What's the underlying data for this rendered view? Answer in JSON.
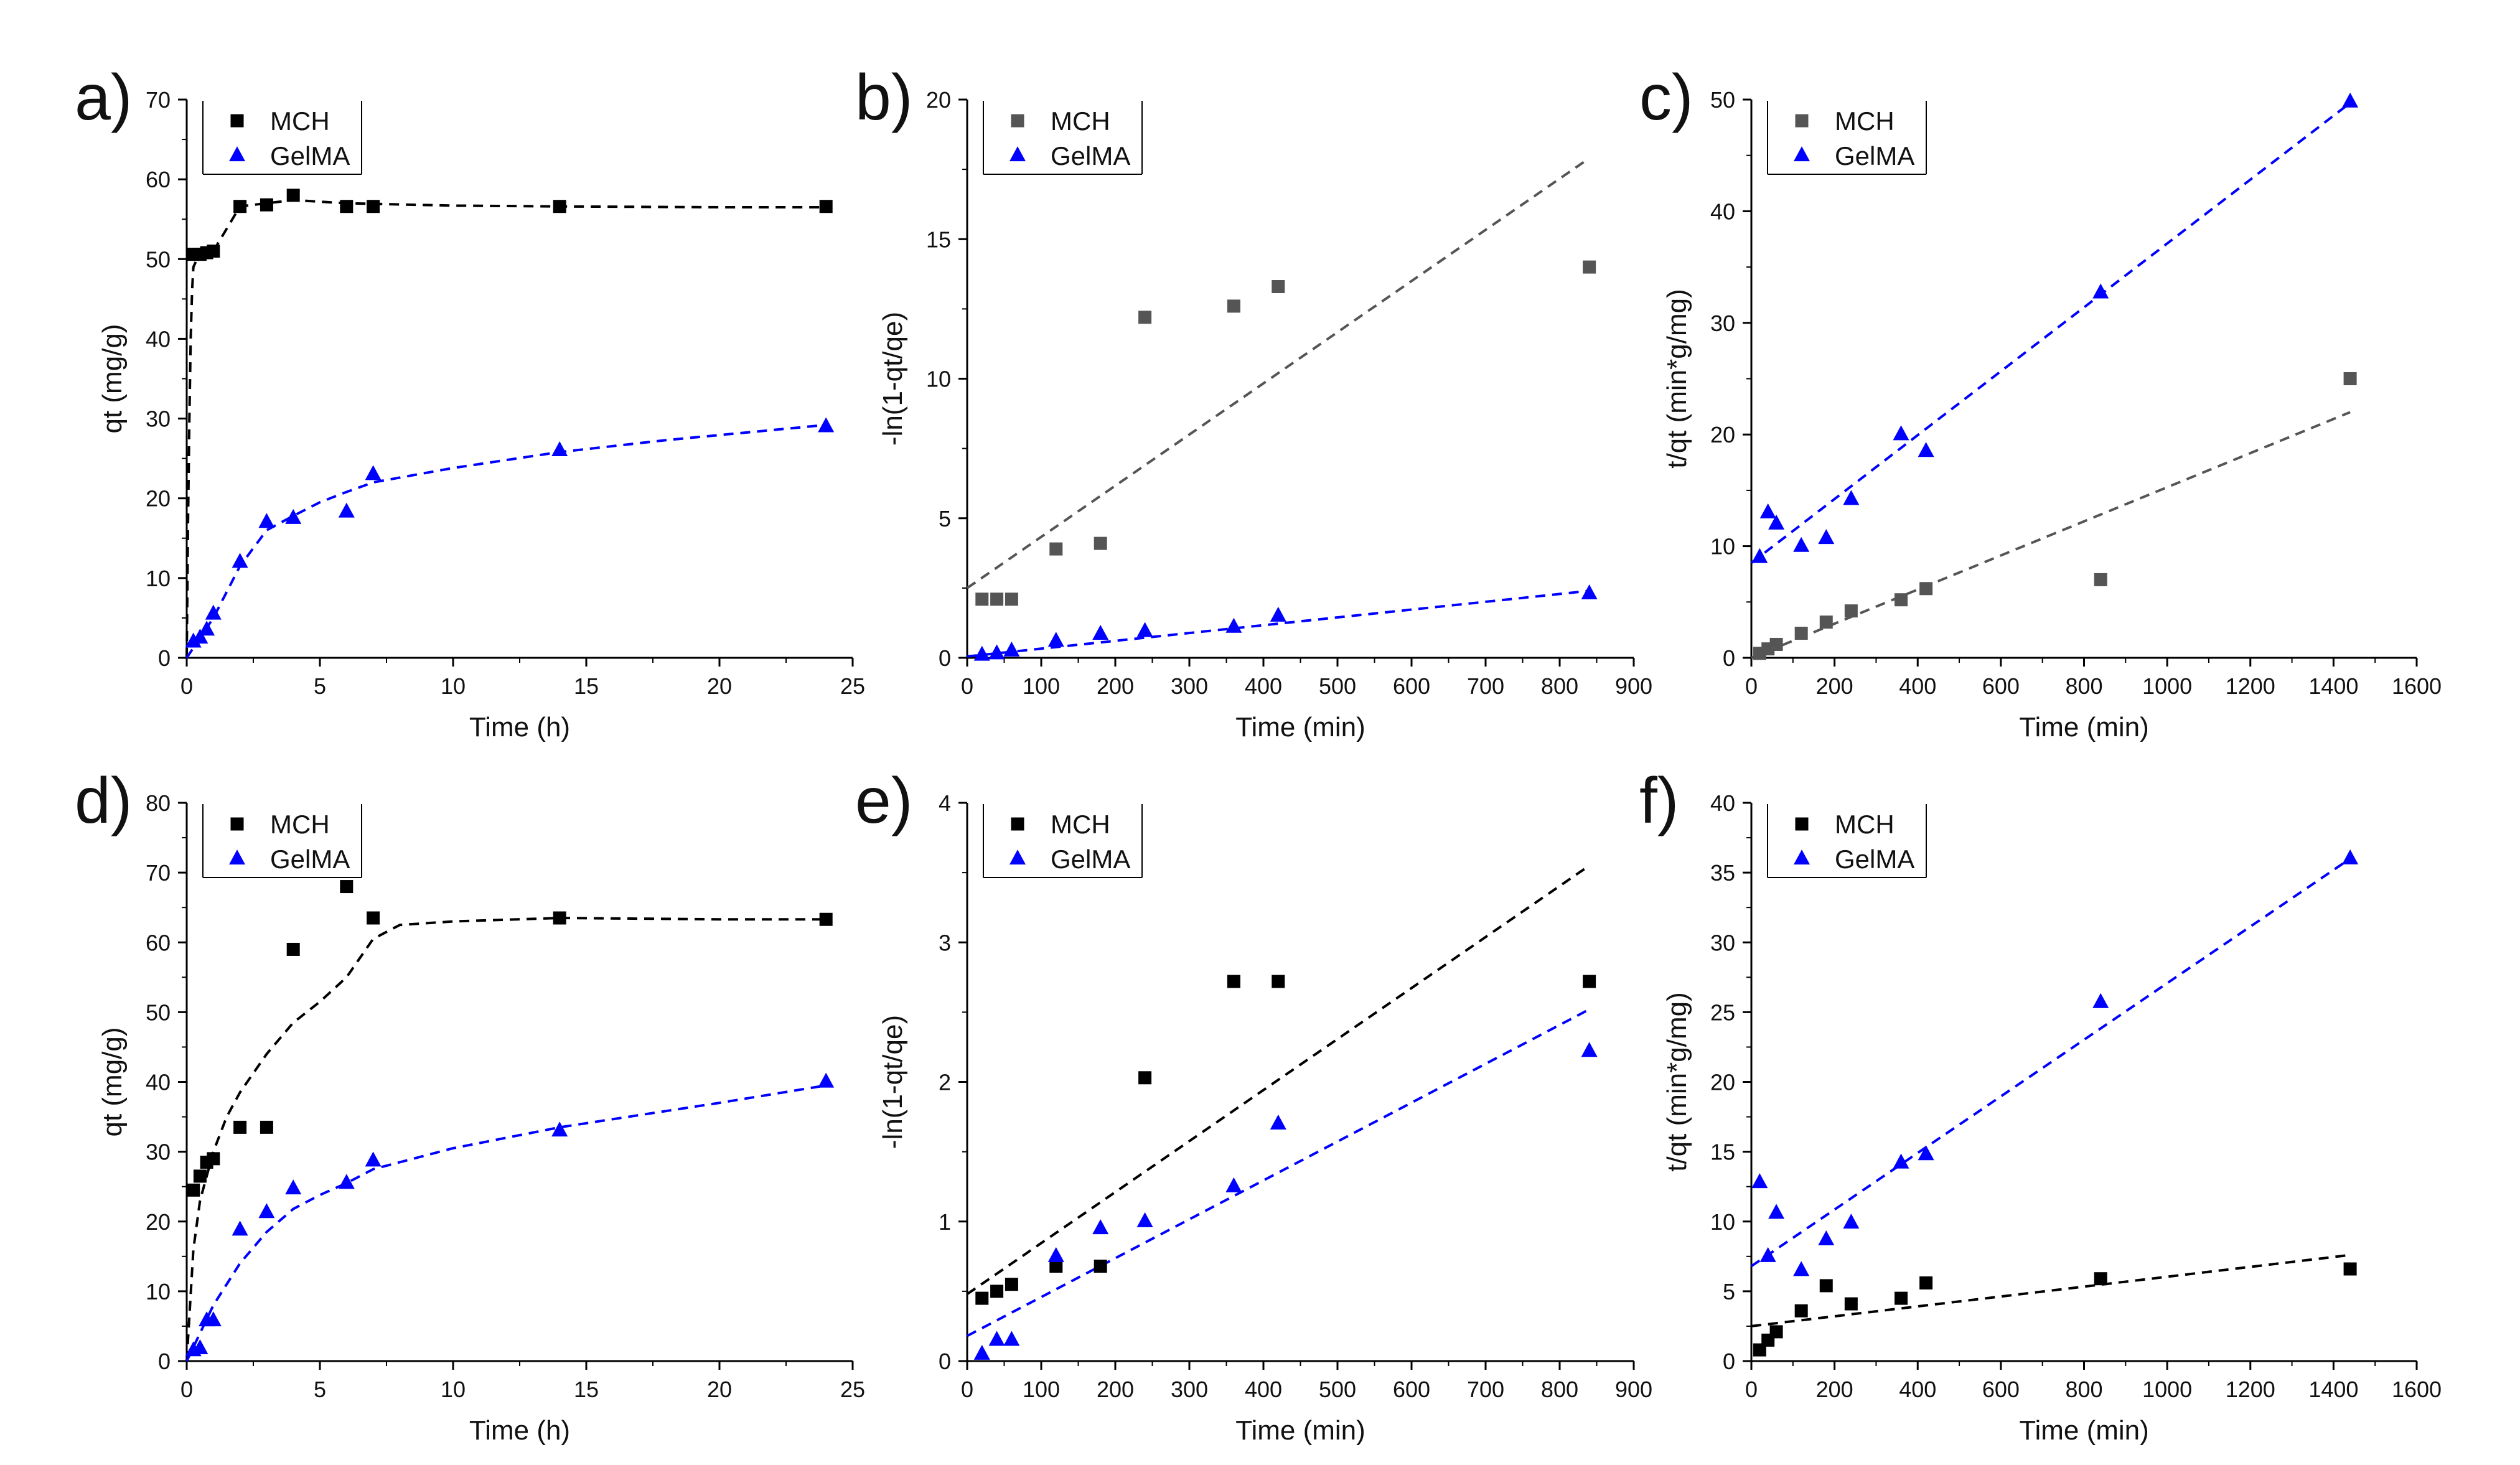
{
  "chart_data": [
    {
      "panel": "a)",
      "type": "scatter",
      "xlabel": "Time (h)",
      "ylabel": "qt (mg/g)",
      "xlim": [
        0,
        25
      ],
      "ylim": [
        0,
        70
      ],
      "xticks": [
        0,
        5,
        10,
        15,
        20,
        25
      ],
      "yticks": [
        0,
        10,
        20,
        30,
        40,
        50,
        60,
        70
      ],
      "legend": "top-left",
      "series": [
        {
          "name": "MCH",
          "color": "#000000",
          "marker": "square",
          "x": [
            0.25,
            0.5,
            0.75,
            1,
            2,
            3,
            4,
            6,
            7,
            14,
            24
          ],
          "y": [
            50.6,
            50.6,
            50.8,
            51,
            56.6,
            56.8,
            58,
            56.6,
            56.6,
            56.6,
            56.6
          ],
          "fit_x": [
            0,
            0.05,
            0.1,
            0.15,
            0.2,
            0.25,
            0.5,
            1,
            2,
            3,
            4,
            6,
            10,
            14,
            20,
            24
          ],
          "fit_y": [
            0,
            17,
            30,
            40,
            46,
            49,
            50.8,
            51,
            56.6,
            57,
            57.4,
            57,
            56.7,
            56.6,
            56.5,
            56.5
          ]
        },
        {
          "name": "GelMA",
          "color": "#0000ff",
          "marker": "triangle",
          "x": [
            0.25,
            0.5,
            0.75,
            1,
            2,
            3,
            4,
            6,
            7,
            14,
            24
          ],
          "y": [
            2,
            2.5,
            3.5,
            5.5,
            12,
            17,
            17.5,
            18.3,
            23,
            26,
            29
          ],
          "fit_x": [
            0,
            0.5,
            1,
            2,
            3,
            4,
            5,
            6,
            7,
            10,
            14,
            18,
            24
          ],
          "fit_y": [
            0,
            2.5,
            5,
            11.5,
            16,
            17.8,
            19.5,
            20.8,
            22,
            23.8,
            25.8,
            27.3,
            29.2
          ]
        }
      ]
    },
    {
      "panel": "b)",
      "type": "scatter",
      "xlabel": "Time (min)",
      "ylabel": "-ln(1-qt/qe)",
      "xlim": [
        0,
        900
      ],
      "ylim": [
        0,
        20
      ],
      "xticks": [
        0,
        100,
        200,
        300,
        400,
        500,
        600,
        700,
        800,
        900
      ],
      "yticks": [
        0,
        5,
        10,
        15,
        20
      ],
      "legend": "top-left",
      "series": [
        {
          "name": "MCH",
          "color": "#555555",
          "marker": "square",
          "x": [
            20,
            40,
            60,
            120,
            180,
            240,
            360,
            420,
            840
          ],
          "y": [
            2.1,
            2.1,
            2.1,
            3.9,
            4.1,
            12.2,
            12.6,
            13.3,
            14
          ],
          "fit_x": [
            0,
            840
          ],
          "fit_y": [
            2.5,
            17.9
          ]
        },
        {
          "name": "GelMA",
          "color": "#0000ff",
          "marker": "triangle",
          "x": [
            20,
            40,
            60,
            120,
            180,
            240,
            360,
            420,
            840
          ],
          "y": [
            0.1,
            0.15,
            0.25,
            0.6,
            0.85,
            0.95,
            1.1,
            1.5,
            2.3
          ],
          "fit_x": [
            0,
            840
          ],
          "fit_y": [
            0.05,
            2.4
          ]
        }
      ]
    },
    {
      "panel": "c)",
      "type": "scatter",
      "xlabel": "Time (min)",
      "ylabel": "t/qt (min*g/mg)",
      "xlim": [
        0,
        1600
      ],
      "ylim": [
        0,
        50
      ],
      "xticks": [
        0,
        200,
        400,
        600,
        800,
        1000,
        1200,
        1400,
        1600
      ],
      "yticks": [
        0,
        10,
        20,
        30,
        40,
        50
      ],
      "legend": "top-left",
      "series": [
        {
          "name": "MCH",
          "color": "#555555",
          "marker": "square",
          "x": [
            20,
            40,
            60,
            120,
            180,
            240,
            360,
            420,
            840,
            1440
          ],
          "y": [
            0.4,
            0.8,
            1.2,
            2.2,
            3.2,
            4.2,
            5.2,
            6.2,
            7,
            25
          ],
          "fit_x": [
            0,
            1440
          ],
          "fit_y": [
            0,
            22
          ]
        },
        {
          "name": "GelMA",
          "color": "#0000ff",
          "marker": "triangle",
          "x": [
            20,
            40,
            60,
            120,
            180,
            240,
            360,
            420,
            840,
            1440
          ],
          "y": [
            9,
            13,
            12,
            10,
            10.7,
            14.2,
            20,
            18.5,
            32.7,
            49.8
          ],
          "fit_x": [
            0,
            1440
          ],
          "fit_y": [
            8.5,
            49.7
          ]
        }
      ]
    },
    {
      "panel": "d)",
      "type": "scatter",
      "xlabel": "Time (h)",
      "ylabel": "qt (mg/g)",
      "xlim": [
        0,
        25
      ],
      "ylim": [
        0,
        80
      ],
      "xticks": [
        0,
        5,
        10,
        15,
        20,
        25
      ],
      "yticks": [
        0,
        10,
        20,
        30,
        40,
        50,
        60,
        70,
        80
      ],
      "legend": "top-left",
      "series": [
        {
          "name": "MCH",
          "color": "#000000",
          "marker": "square",
          "x": [
            0.25,
            0.5,
            0.75,
            1,
            2,
            3,
            4,
            6,
            7,
            14,
            24
          ],
          "y": [
            24.5,
            26.5,
            28.5,
            29,
            33.5,
            33.5,
            59,
            68,
            63.5,
            63.5,
            63.3
          ],
          "fit_x": [
            0,
            0.25,
            0.5,
            1,
            1.5,
            2,
            3,
            4,
            5,
            6,
            7,
            8,
            10,
            14,
            20,
            24
          ],
          "fit_y": [
            0,
            16,
            23,
            30,
            35,
            38.5,
            44,
            48.5,
            51.5,
            55,
            60.5,
            62.5,
            63,
            63.5,
            63.3,
            63.3
          ]
        },
        {
          "name": "GelMA",
          "color": "#0000ff",
          "marker": "triangle",
          "x": [
            0.25,
            0.5,
            0.75,
            1,
            2,
            3,
            4,
            6,
            7,
            14,
            24
          ],
          "y": [
            1.5,
            1.8,
            5.8,
            5.8,
            18.8,
            21.3,
            24.7,
            25.5,
            28.7,
            33,
            40
          ],
          "fit_x": [
            0,
            0.5,
            1,
            2,
            3,
            4,
            5,
            6,
            7,
            10,
            14,
            20,
            24
          ],
          "fit_y": [
            0,
            4,
            8,
            14,
            18.5,
            21.8,
            23.8,
            25.5,
            27.5,
            30.5,
            33.5,
            37,
            39.5
          ]
        }
      ]
    },
    {
      "panel": "e)",
      "type": "scatter",
      "xlabel": "Time (min)",
      "ylabel": "-ln(1-qt/qe)",
      "xlim": [
        0,
        900
      ],
      "ylim": [
        0,
        4
      ],
      "xticks": [
        0,
        100,
        200,
        300,
        400,
        500,
        600,
        700,
        800,
        900
      ],
      "yticks": [
        0,
        1,
        2,
        3,
        4
      ],
      "legend": "top-left",
      "series": [
        {
          "name": "MCH",
          "color": "#000000",
          "marker": "square",
          "x": [
            20,
            40,
            60,
            120,
            180,
            240,
            360,
            420,
            840
          ],
          "y": [
            0.45,
            0.5,
            0.55,
            0.68,
            0.68,
            2.03,
            2.72,
            2.72,
            2.72
          ],
          "fit_x": [
            0,
            840
          ],
          "fit_y": [
            0.48,
            3.55
          ]
        },
        {
          "name": "GelMA",
          "color": "#0000ff",
          "marker": "triangle",
          "x": [
            20,
            40,
            60,
            120,
            180,
            240,
            360,
            420,
            840
          ],
          "y": [
            0.05,
            0.15,
            0.15,
            0.75,
            0.95,
            1.0,
            1.25,
            1.7,
            2.22
          ],
          "fit_x": [
            0,
            840
          ],
          "fit_y": [
            0.18,
            2.52
          ]
        }
      ]
    },
    {
      "panel": "f)",
      "type": "scatter",
      "xlabel": "Time (min)",
      "ylabel": "t/qt (min*g/mg)",
      "xlim": [
        0,
        1600
      ],
      "ylim": [
        0,
        40
      ],
      "xticks": [
        0,
        200,
        400,
        600,
        800,
        1000,
        1200,
        1400,
        1600
      ],
      "yticks": [
        0,
        5,
        10,
        15,
        20,
        25,
        30,
        35,
        40
      ],
      "legend": "top-left",
      "series": [
        {
          "name": "MCH",
          "color": "#000000",
          "marker": "square",
          "x": [
            20,
            40,
            60,
            120,
            180,
            240,
            360,
            420,
            840,
            1440
          ],
          "y": [
            0.8,
            1.5,
            2.1,
            3.6,
            5.4,
            4.1,
            4.5,
            5.6,
            5.9,
            6.6
          ],
          "fit_x": [
            0,
            1440
          ],
          "fit_y": [
            2.5,
            7.6
          ]
        },
        {
          "name": "GelMA",
          "color": "#0000ff",
          "marker": "triangle",
          "x": [
            20,
            40,
            60,
            120,
            180,
            240,
            360,
            420,
            840,
            1440
          ],
          "y": [
            12.8,
            7.5,
            10.6,
            6.5,
            8.7,
            9.9,
            14.2,
            14.8,
            25.7,
            36
          ],
          "fit_x": [
            0,
            1440
          ],
          "fit_y": [
            6.8,
            36
          ]
        }
      ]
    }
  ]
}
